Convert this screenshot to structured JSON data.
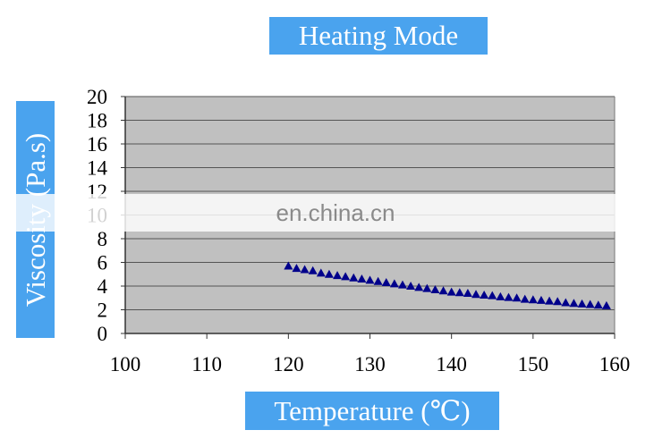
{
  "colors": {
    "label_box": "#4aa3ee",
    "plot_bg": "#c0c0c0",
    "grid": "#555555",
    "marker": "#00008b"
  },
  "watermark": "en.china.cn",
  "chart_data": {
    "type": "scatter",
    "title": "Heating Mode",
    "xlabel": "Temperature (℃)",
    "ylabel": "Viscosity (Pa.s)",
    "xlim": [
      100,
      160
    ],
    "ylim": [
      0,
      20
    ],
    "xticks": [
      100,
      110,
      120,
      130,
      140,
      150,
      160
    ],
    "yticks": [
      0,
      2,
      4,
      6,
      8,
      10,
      12,
      14,
      16,
      18,
      20
    ],
    "grid": "horizontal",
    "marker": "triangle",
    "x": [
      120,
      121,
      122,
      123,
      124,
      125,
      126,
      127,
      128,
      129,
      130,
      131,
      132,
      133,
      134,
      135,
      136,
      137,
      138,
      139,
      140,
      141,
      142,
      143,
      144,
      145,
      146,
      147,
      148,
      149,
      150,
      151,
      152,
      153,
      154,
      155,
      156,
      157,
      158,
      159
    ],
    "y": [
      5.7,
      5.5,
      5.4,
      5.3,
      5.1,
      5.0,
      4.9,
      4.8,
      4.7,
      4.6,
      4.5,
      4.4,
      4.3,
      4.2,
      4.1,
      4.0,
      3.9,
      3.8,
      3.7,
      3.6,
      3.5,
      3.45,
      3.4,
      3.3,
      3.25,
      3.2,
      3.1,
      3.05,
      3.0,
      2.9,
      2.85,
      2.8,
      2.75,
      2.7,
      2.6,
      2.55,
      2.5,
      2.45,
      2.4,
      2.35
    ]
  }
}
